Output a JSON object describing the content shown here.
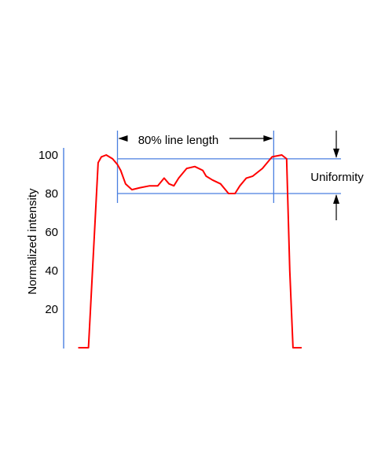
{
  "chart_data": {
    "type": "line",
    "ylabel": "Normalized intensity",
    "xlabel": "",
    "title": "",
    "ylim": [
      0,
      100
    ],
    "xlim": [
      0,
      100
    ],
    "y_ticks": [
      20,
      40,
      60,
      80,
      100
    ],
    "grid": false,
    "legend": "none",
    "series": [
      {
        "color": "#ff0000",
        "x": [
          3,
          6,
          9,
          10,
          11.5,
          13.5,
          15,
          16,
          17.5,
          19.5,
          22,
          25,
          27.5,
          29.5,
          31,
          32.5,
          34,
          36.5,
          39,
          41.5,
          42.5,
          44.5,
          47,
          49.5,
          51.5,
          53,
          55,
          57,
          60,
          63,
          66,
          67.5,
          68.5,
          69.5,
          70.5,
          72
        ],
        "y": [
          0,
          0,
          96,
          99,
          100,
          98,
          95,
          92,
          85,
          82,
          83,
          84,
          84,
          88,
          85,
          84,
          88,
          93,
          94,
          92,
          89,
          87,
          85,
          80,
          80,
          84,
          88,
          89,
          93,
          99,
          100,
          98,
          40,
          0,
          0,
          0
        ]
      }
    ],
    "annotations": {
      "line_length_label": "80% line length",
      "uniformity_label": "Uniformity",
      "reference_levels": [
        98,
        80
      ],
      "line_span_x": [
        15,
        63.5
      ],
      "line_color": "#4a7fe0"
    }
  }
}
